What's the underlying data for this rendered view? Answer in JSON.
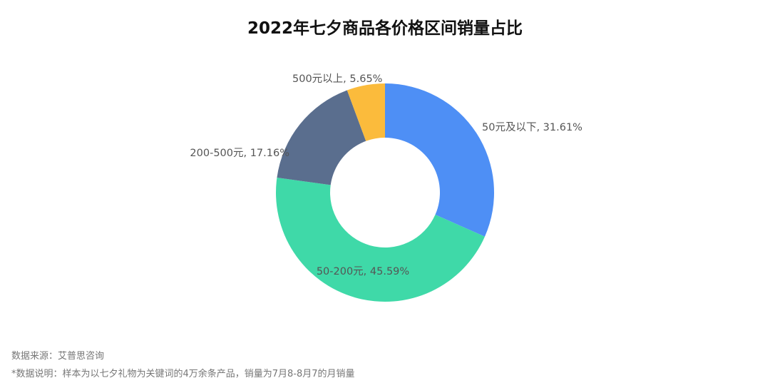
{
  "chart_data": {
    "type": "donut",
    "title": "2022年七夕商品各价格区间销量占比",
    "values": [
      31.61,
      45.59,
      17.16,
      5.65
    ],
    "value_labels": [
      "50元及以下, 31.61%",
      "50-200元, 45.59%",
      "200-500元, 17.16%",
      "500元以上, 5.65%"
    ],
    "colors": [
      "#4e8ff5",
      "#3fd9a8",
      "#5a6e8e",
      "#fbbb3c"
    ],
    "source": "数据来源：艾普思咨询",
    "note": "*数据说明：样本为以七夕礼物为关键词的4万余条产品，销量为7月8-8月7的月销量"
  }
}
